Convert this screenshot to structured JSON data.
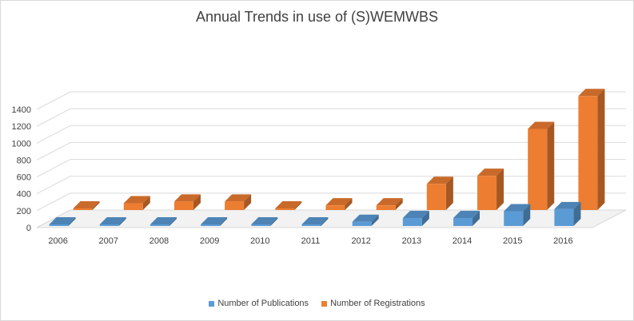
{
  "chart_data": {
    "type": "bar",
    "title": "Annual Trends in use of (S)WEMWBS",
    "categories": [
      "2006",
      "2007",
      "2008",
      "2009",
      "2010",
      "2011",
      "2012",
      "2013",
      "2014",
      "2015",
      "2016"
    ],
    "series": [
      {
        "name": "Number of Publications",
        "values": [
          2,
          3,
          4,
          4,
          3,
          12,
          50,
          95,
          95,
          175,
          200
        ],
        "color": "#5b9bd5"
      },
      {
        "name": "Number of Registrations",
        "values": [
          8,
          80,
          100,
          100,
          8,
          55,
          55,
          310,
          405,
          960,
          1350
        ],
        "color": "#ed7d31"
      }
    ],
    "yticks": [
      0,
      200,
      400,
      600,
      800,
      1000,
      1200,
      1400
    ],
    "ylim": [
      0,
      1400
    ],
    "grid": true,
    "legend_position": "bottom"
  }
}
